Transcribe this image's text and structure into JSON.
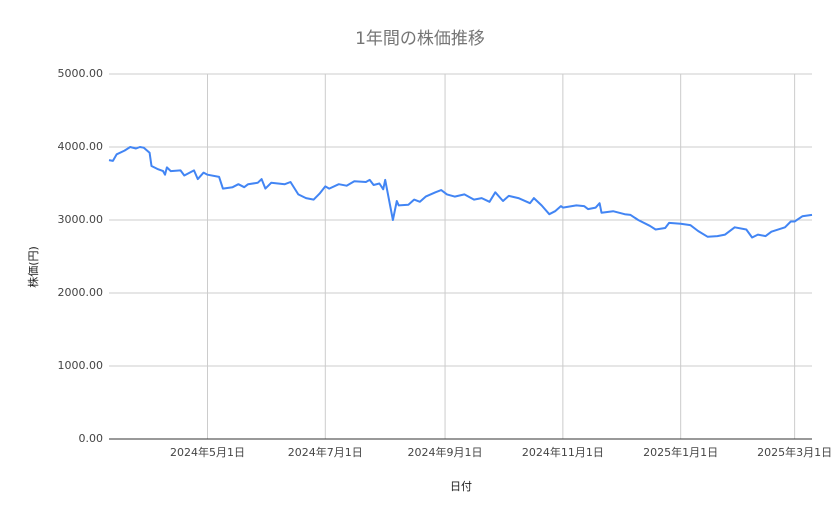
{
  "chart_data": {
    "type": "line",
    "title": "1年間の株価推移",
    "x_label": "日付",
    "y_label": "株価(円)",
    "x": [
      "2024-03-11",
      "2024-03-13",
      "2024-03-15",
      "2024-03-19",
      "2024-03-22",
      "2024-03-25",
      "2024-03-27",
      "2024-03-29",
      "2024-04-01",
      "2024-04-02",
      "2024-04-05",
      "2024-04-08",
      "2024-04-09",
      "2024-04-10",
      "2024-04-12",
      "2024-04-17",
      "2024-04-19",
      "2024-04-24",
      "2024-04-26",
      "2024-04-29",
      "2024-05-01",
      "2024-05-07",
      "2024-05-09",
      "2024-05-14",
      "2024-05-17",
      "2024-05-20",
      "2024-05-22",
      "2024-05-27",
      "2024-05-29",
      "2024-05-31",
      "2024-06-03",
      "2024-06-10",
      "2024-06-13",
      "2024-06-17",
      "2024-06-21",
      "2024-06-25",
      "2024-06-28",
      "2024-07-01",
      "2024-07-03",
      "2024-07-08",
      "2024-07-12",
      "2024-07-16",
      "2024-07-22",
      "2024-07-24",
      "2024-07-26",
      "2024-07-29",
      "2024-07-31",
      "2024-08-01",
      "2024-08-05",
      "2024-08-07",
      "2024-08-08",
      "2024-08-13",
      "2024-08-16",
      "2024-08-19",
      "2024-08-22",
      "2024-08-27",
      "2024-08-30",
      "2024-09-02",
      "2024-09-06",
      "2024-09-11",
      "2024-09-16",
      "2024-09-20",
      "2024-09-24",
      "2024-09-27",
      "2024-10-01",
      "2024-10-04",
      "2024-10-09",
      "2024-10-15",
      "2024-10-17",
      "2024-10-21",
      "2024-10-25",
      "2024-10-28",
      "2024-10-31",
      "2024-11-01",
      "2024-11-08",
      "2024-11-12",
      "2024-11-14",
      "2024-11-18",
      "2024-11-20",
      "2024-11-21",
      "2024-11-27",
      "2024-12-03",
      "2024-12-06",
      "2024-12-10",
      "2024-12-16",
      "2024-12-19",
      "2024-12-24",
      "2024-12-26",
      "2025-01-01",
      "2025-01-06",
      "2025-01-10",
      "2025-01-15",
      "2025-01-20",
      "2025-01-24",
      "2025-01-29",
      "2025-02-04",
      "2025-02-07",
      "2025-02-10",
      "2025-02-14",
      "2025-02-17",
      "2025-02-24",
      "2025-02-27",
      "2025-03-01",
      "2025-03-05",
      "2025-03-10"
    ],
    "series": [
      {
        "name": "株価",
        "color": "#4285f4",
        "values": [
          3820,
          3810,
          3900,
          3950,
          4000,
          3980,
          4000,
          3990,
          3920,
          3740,
          3700,
          3670,
          3620,
          3720,
          3670,
          3680,
          3610,
          3680,
          3560,
          3650,
          3620,
          3590,
          3430,
          3450,
          3490,
          3450,
          3490,
          3510,
          3560,
          3430,
          3510,
          3490,
          3520,
          3350,
          3300,
          3280,
          3360,
          3460,
          3430,
          3490,
          3470,
          3530,
          3520,
          3550,
          3480,
          3500,
          3420,
          3550,
          3000,
          3260,
          3200,
          3210,
          3280,
          3250,
          3320,
          3380,
          3410,
          3350,
          3320,
          3350,
          3280,
          3300,
          3250,
          3380,
          3260,
          3330,
          3300,
          3230,
          3300,
          3200,
          3080,
          3120,
          3190,
          3170,
          3200,
          3190,
          3150,
          3170,
          3230,
          3100,
          3120,
          3080,
          3070,
          3000,
          2920,
          2870,
          2890,
          2960,
          2950,
          2930,
          2850,
          2770,
          2780,
          2800,
          2900,
          2870,
          2760,
          2800,
          2780,
          2840,
          2900,
          2980,
          2980,
          3050,
          3070
        ]
      }
    ],
    "xlim": [
      "2024-03-11",
      "2025-03-10"
    ],
    "xticks": [
      {
        "value": "2024-05-01",
        "label": "2024年5月1日"
      },
      {
        "value": "2024-07-01",
        "label": "2024年7月1日"
      },
      {
        "value": "2024-09-01",
        "label": "2024年9月1日"
      },
      {
        "value": "2024-11-01",
        "label": "2024年11月1日"
      },
      {
        "value": "2025-01-01",
        "label": "2025年1月1日"
      },
      {
        "value": "2025-03-01",
        "label": "2025年3月1日"
      }
    ],
    "ylim": [
      0,
      5000
    ],
    "yticks": [
      {
        "value": 0,
        "label": "0.00"
      },
      {
        "value": 1000,
        "label": "1000.00"
      },
      {
        "value": 2000,
        "label": "2000.00"
      },
      {
        "value": 3000,
        "label": "3000.00"
      },
      {
        "value": 4000,
        "label": "4000.00"
      },
      {
        "value": 5000,
        "label": "5000.00"
      }
    ],
    "grid": true
  }
}
